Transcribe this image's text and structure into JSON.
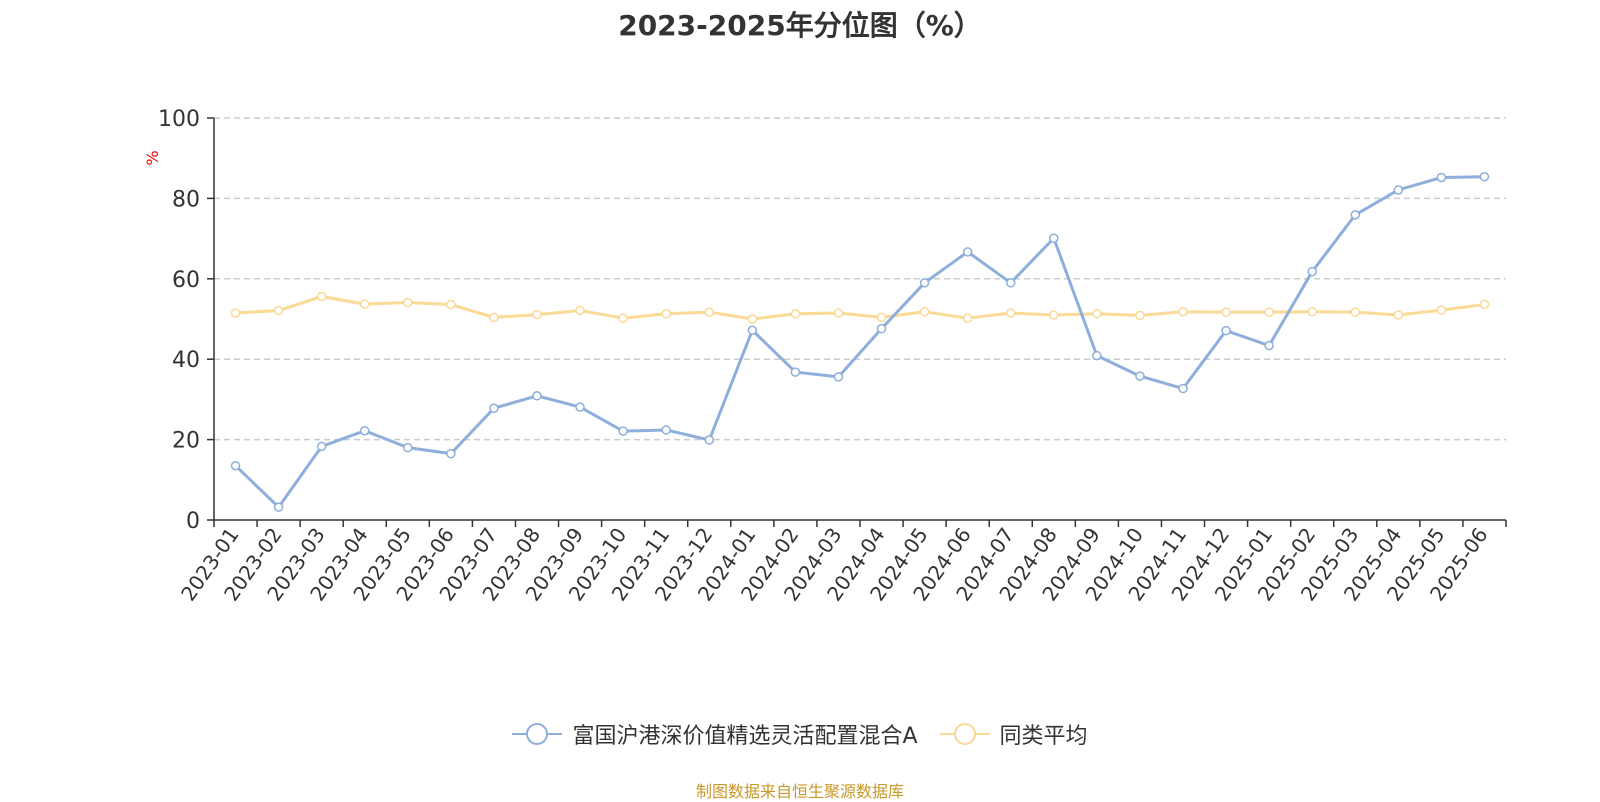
{
  "chart_data": {
    "type": "line",
    "title": "2023-2025年分位图（%）",
    "ylabel": "%",
    "xlabel": "",
    "ylim": [
      0,
      100
    ],
    "yticks": [
      0,
      20,
      40,
      60,
      80,
      100
    ],
    "grid": true,
    "legend_position": "bottom",
    "categories": [
      "2023-01",
      "2023-02",
      "2023-03",
      "2023-04",
      "2023-05",
      "2023-06",
      "2023-07",
      "2023-08",
      "2023-09",
      "2023-10",
      "2023-11",
      "2023-12",
      "2024-01",
      "2024-02",
      "2024-03",
      "2024-04",
      "2024-05",
      "2024-06",
      "2024-07",
      "2024-08",
      "2024-09",
      "2024-10",
      "2024-11",
      "2024-12",
      "2025-01",
      "2025-02",
      "2025-03",
      "2025-04",
      "2025-05",
      "2025-06"
    ],
    "series": [
      {
        "name": "富国沪港深价值精选灵活配置混合A",
        "color": "#8eaedb",
        "values": [
          13.5,
          3.2,
          18.3,
          22.2,
          18.0,
          16.5,
          27.8,
          30.9,
          28.1,
          22.1,
          22.4,
          19.9,
          47.2,
          36.8,
          35.6,
          47.6,
          59.0,
          66.7,
          59.0,
          70.1,
          40.9,
          35.8,
          32.7,
          47.1,
          43.4,
          61.8,
          75.9,
          82.1,
          85.2,
          85.4
        ]
      },
      {
        "name": "同类平均",
        "color": "#fbd996",
        "values": [
          51.5,
          52.1,
          55.6,
          53.7,
          54.1,
          53.6,
          50.4,
          51.1,
          52.1,
          50.2,
          51.3,
          51.7,
          50.0,
          51.3,
          51.5,
          50.4,
          51.8,
          50.2,
          51.5,
          51.0,
          51.3,
          50.9,
          51.8,
          51.7,
          51.7,
          51.8,
          51.7,
          51.0,
          52.2,
          53.6
        ]
      }
    ]
  },
  "source_note": "制图数据来自恒生聚源数据库"
}
